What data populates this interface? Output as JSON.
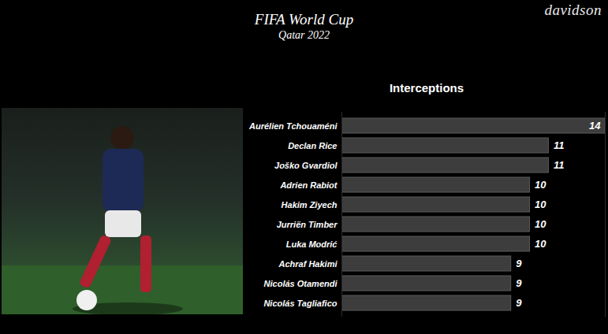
{
  "chart_data": {
    "type": "bar",
    "orientation": "horizontal",
    "title": "FIFA World Cup",
    "subtitle": "Qatar 2022",
    "xlabel": "Interceptions",
    "annotations": [
      "davidson"
    ],
    "categories": [
      "Aurélien Tchouaméni",
      "Declan Rice",
      "Joško Gvardiol",
      "Adrien Rabiot",
      "Hakim Ziyech",
      "Jurriën Timber",
      "Luka Modrić",
      "Achraf Hakimi",
      "Nicolás Otamendi",
      "Nicolás Tagliafico"
    ],
    "values": [
      14,
      11,
      11,
      10,
      10,
      10,
      10,
      9,
      9,
      9
    ],
    "color": "#3d3d3d",
    "xlim": [
      0,
      14
    ],
    "xticks": [],
    "tick_labels": "y",
    "grid": false,
    "data_labels": true
  }
}
